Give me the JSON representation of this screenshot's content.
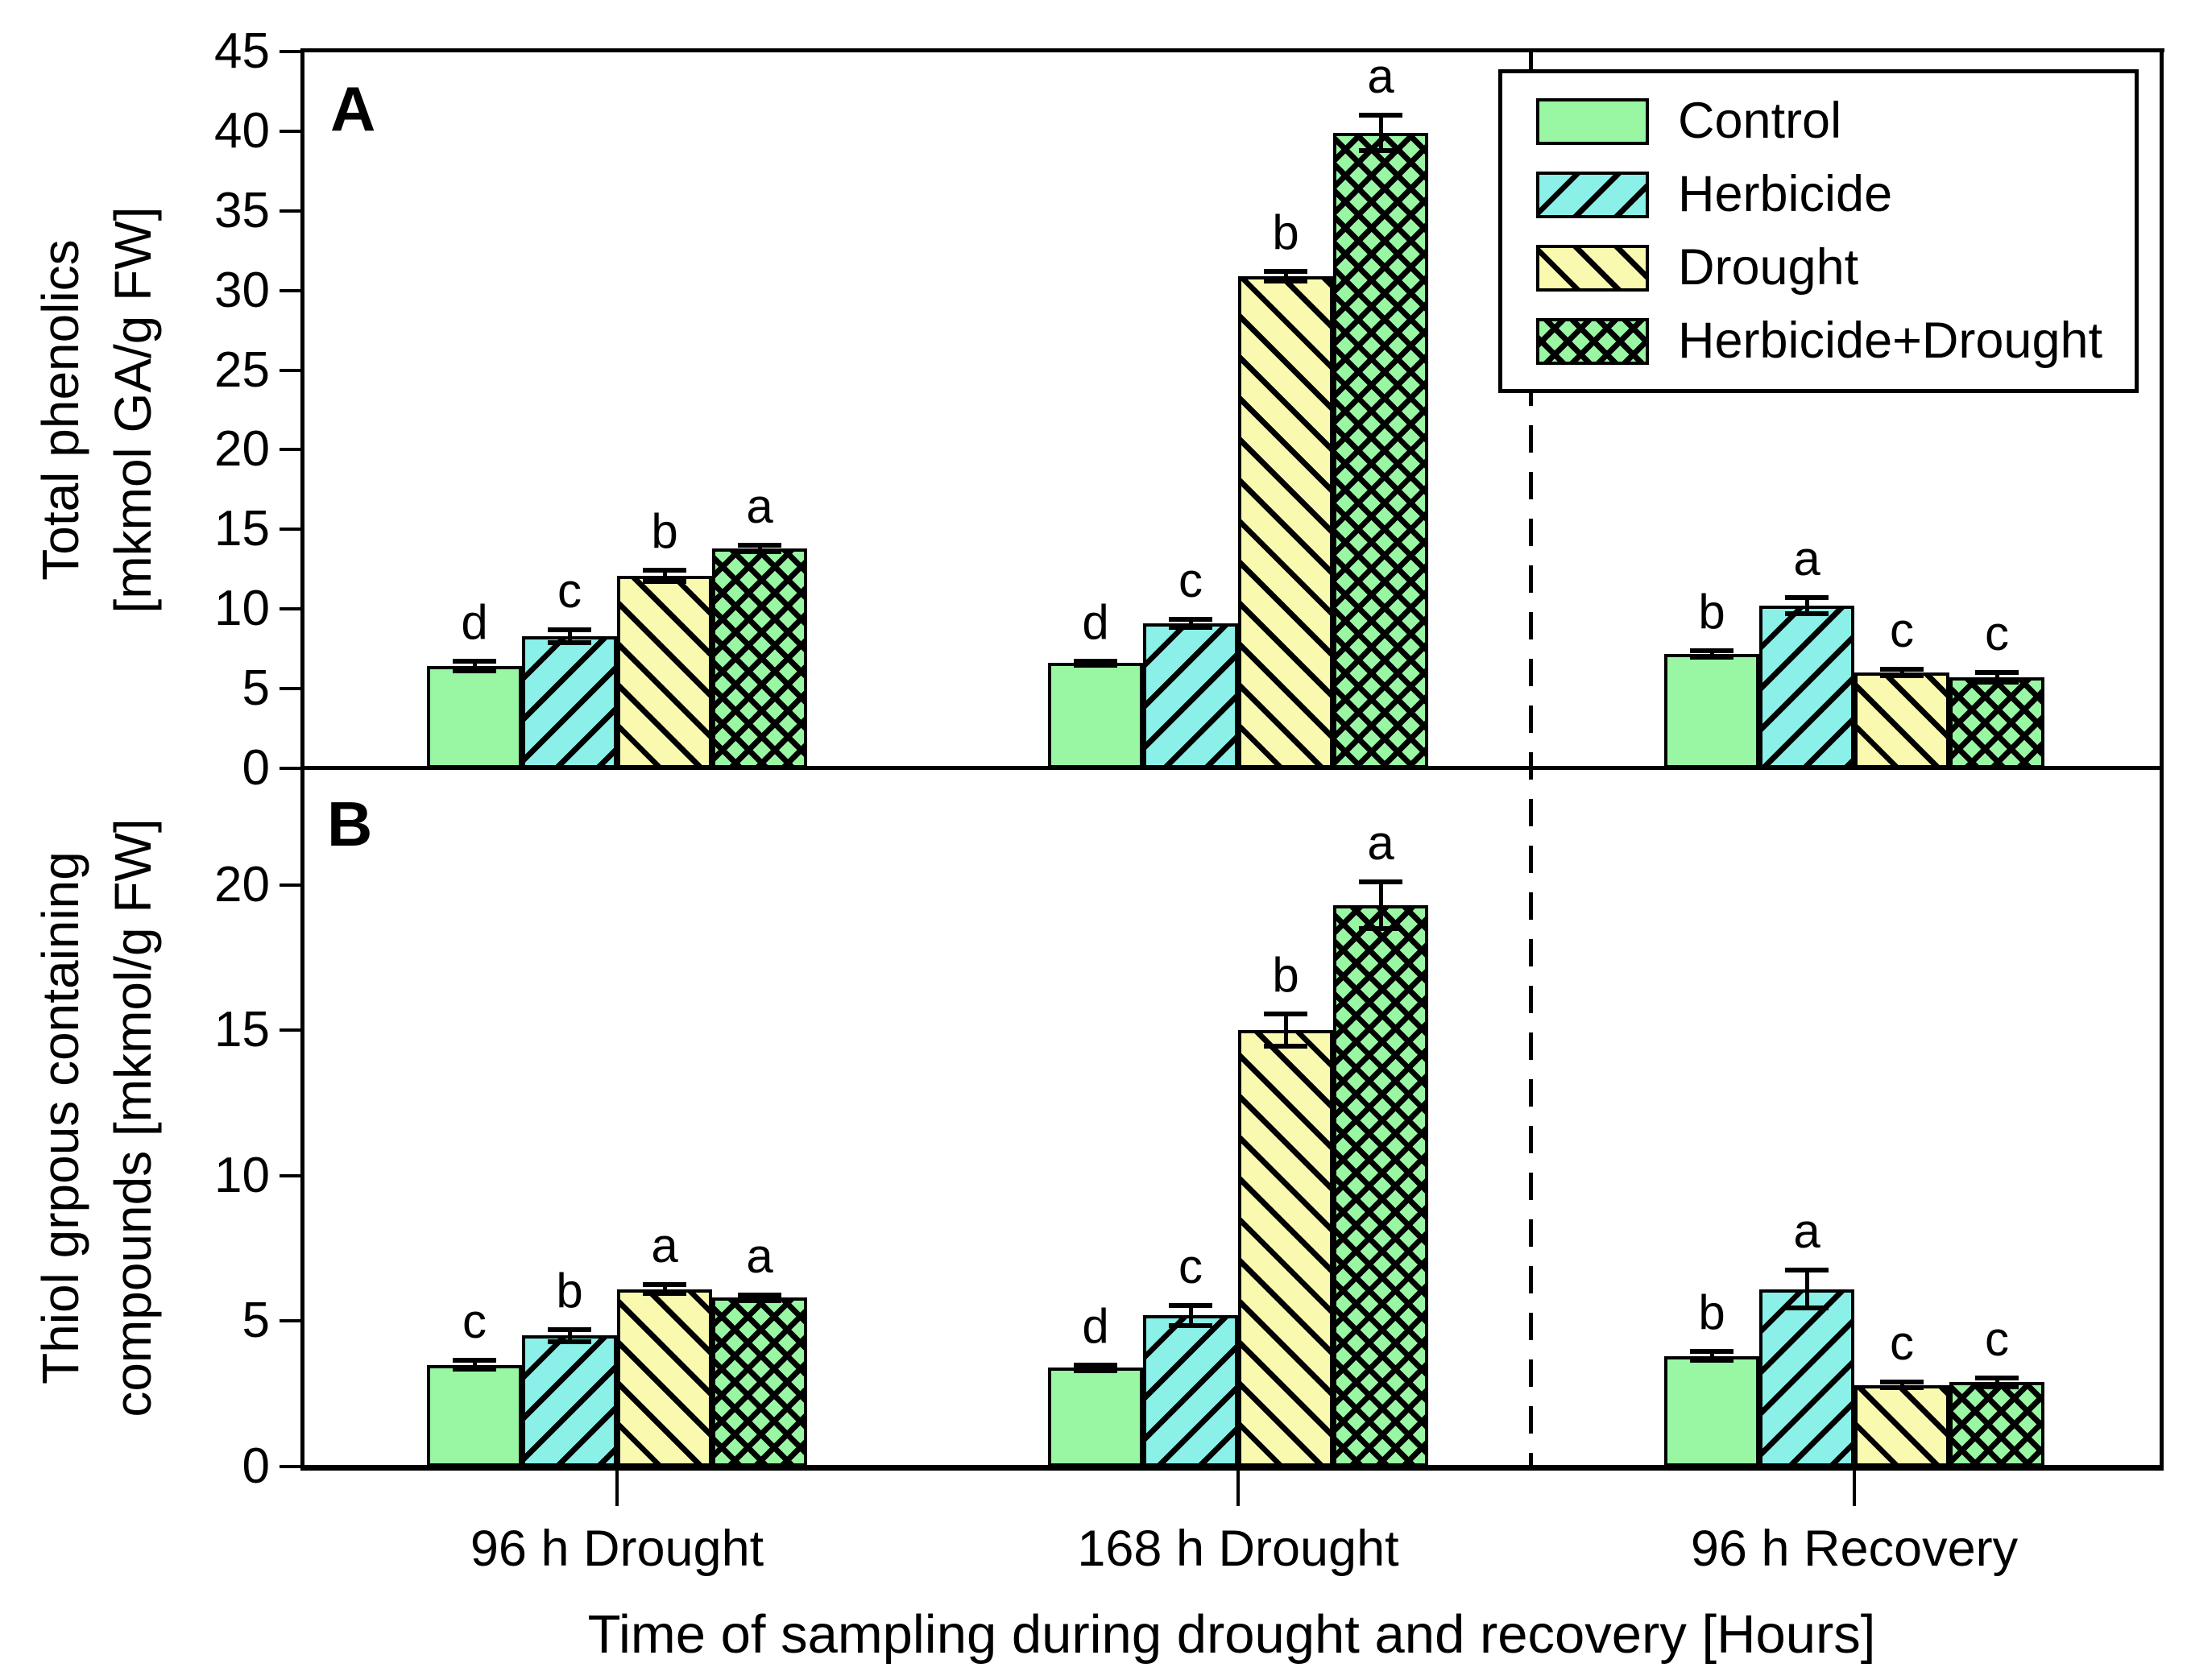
{
  "figure": {
    "background": "#ffffff",
    "panel_a_label": "A",
    "panel_b_label": "B"
  },
  "colors": {
    "control": "#99f7a3",
    "herbicide": "#8af0e8",
    "drought": "#f9f9b0",
    "herbicide_drought": "#99f7a3",
    "hatch": "#000000",
    "axis": "#000000"
  },
  "legend": {
    "items": [
      {
        "label": "Control",
        "color_key": "control",
        "pattern": "solid",
        "swatch_icon": "solid-green-swatch"
      },
      {
        "label": "Herbicide",
        "color_key": "herbicide",
        "pattern": "diag-up",
        "swatch_icon": "cyan-forward-hatch-swatch"
      },
      {
        "label": "Drought",
        "color_key": "drought",
        "pattern": "diag-down",
        "swatch_icon": "yellow-back-hatch-swatch"
      },
      {
        "label": "Herbicide+Drought",
        "color_key": "herbicide_drought",
        "pattern": "cross",
        "swatch_icon": "green-crosshatch-swatch"
      }
    ]
  },
  "x_axis": {
    "title": "Time of sampling during drought and recovery [Hours]",
    "categories": [
      "96 h Drought",
      "168 h Drought",
      "96 h Recovery"
    ]
  },
  "chart_data": [
    {
      "type": "bar",
      "panel": "A",
      "title": "",
      "ylabel_lines": [
        "Total phenolics",
        "[mkmol GA/g FW]"
      ],
      "ylim": [
        0,
        45
      ],
      "yticks": [
        0,
        5,
        10,
        15,
        20,
        25,
        30,
        35,
        40,
        45
      ],
      "grid": false,
      "categories": [
        "96 h Drought",
        "168 h Drought",
        "96 h Recovery"
      ],
      "series": [
        {
          "name": "Control",
          "color_key": "control",
          "pattern": "solid",
          "values": [
            6.4,
            6.6,
            7.2
          ],
          "errors": [
            0.3,
            0.15,
            0.2
          ],
          "letters": [
            "d",
            "d",
            "b"
          ]
        },
        {
          "name": "Herbicide",
          "color_key": "herbicide",
          "pattern": "diag-up",
          "values": [
            8.3,
            9.1,
            10.2
          ],
          "errors": [
            0.4,
            0.25,
            0.5
          ],
          "letters": [
            "c",
            "c",
            "a"
          ]
        },
        {
          "name": "Drought",
          "color_key": "drought",
          "pattern": "diag-down",
          "values": [
            12.1,
            30.9,
            6.0
          ],
          "errors": [
            0.35,
            0.3,
            0.2
          ],
          "letters": [
            "b",
            "b",
            "c"
          ]
        },
        {
          "name": "Herbicide+Drought",
          "color_key": "herbicide_drought",
          "pattern": "cross",
          "values": [
            13.8,
            39.9,
            5.7
          ],
          "errors": [
            0.2,
            1.1,
            0.3
          ],
          "letters": [
            "a",
            "a",
            "c"
          ]
        }
      ]
    },
    {
      "type": "bar",
      "panel": "B",
      "title": "",
      "ylabel_lines": [
        "Thiol grpous containing",
        "compounds [mkmol/g FW]"
      ],
      "ylim": [
        0,
        24
      ],
      "yticks": [
        0,
        5,
        10,
        15,
        20
      ],
      "grid": false,
      "categories": [
        "96 h Drought",
        "168 h Drought",
        "96 h Recovery"
      ],
      "series": [
        {
          "name": "Control",
          "color_key": "control",
          "pattern": "solid",
          "values": [
            3.5,
            3.4,
            3.8
          ],
          "errors": [
            0.15,
            0.1,
            0.15
          ],
          "letters": [
            "c",
            "d",
            "b"
          ]
        },
        {
          "name": "Herbicide",
          "color_key": "herbicide",
          "pattern": "diag-up",
          "values": [
            4.5,
            5.2,
            6.1
          ],
          "errors": [
            0.2,
            0.35,
            0.65
          ],
          "letters": [
            "b",
            "c",
            "a"
          ]
        },
        {
          "name": "Drought",
          "color_key": "drought",
          "pattern": "diag-down",
          "values": [
            6.1,
            15.0,
            2.8
          ],
          "errors": [
            0.15,
            0.55,
            0.1
          ],
          "letters": [
            "a",
            "b",
            "c"
          ]
        },
        {
          "name": "Herbicide+Drought",
          "color_key": "herbicide_drought",
          "pattern": "cross",
          "values": [
            5.8,
            19.3,
            2.9
          ],
          "errors": [
            0.1,
            0.8,
            0.15
          ],
          "letters": [
            "a",
            "a",
            "c"
          ]
        }
      ]
    }
  ]
}
